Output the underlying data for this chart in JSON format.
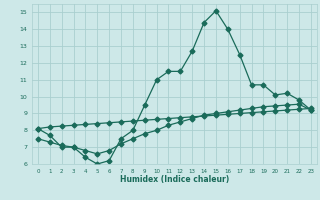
{
  "xlabel": "Humidex (Indice chaleur)",
  "bg_color": "#cde8e8",
  "grid_color": "#aacfcf",
  "line_color": "#1a6b5a",
  "xlim": [
    -0.5,
    23.5
  ],
  "ylim": [
    6,
    15.5
  ],
  "xticks": [
    0,
    1,
    2,
    3,
    4,
    5,
    6,
    7,
    8,
    9,
    10,
    11,
    12,
    13,
    14,
    15,
    16,
    17,
    18,
    19,
    20,
    21,
    22,
    23
  ],
  "yticks": [
    6,
    7,
    8,
    9,
    10,
    11,
    12,
    13,
    14,
    15
  ],
  "curve1_x": [
    0,
    1,
    2,
    3,
    4,
    5,
    6,
    7,
    8,
    9,
    10,
    11,
    12,
    13,
    14,
    15,
    16,
    17,
    18,
    19,
    20,
    21,
    22,
    23
  ],
  "curve1_y": [
    8.1,
    7.7,
    7.0,
    7.0,
    6.4,
    6.0,
    6.2,
    7.5,
    8.0,
    9.5,
    11.0,
    11.5,
    11.5,
    12.7,
    14.4,
    15.1,
    14.0,
    12.5,
    10.7,
    10.7,
    10.1,
    10.2,
    9.8,
    9.2
  ],
  "curve2_x": [
    0,
    1,
    2,
    3,
    4,
    5,
    6,
    7,
    8,
    9,
    10,
    11,
    12,
    13,
    14,
    15,
    16,
    17,
    18,
    19,
    20,
    21,
    22,
    23
  ],
  "curve2_y": [
    8.1,
    8.2,
    8.25,
    8.3,
    8.35,
    8.4,
    8.45,
    8.5,
    8.55,
    8.6,
    8.65,
    8.7,
    8.75,
    8.8,
    8.85,
    8.9,
    8.95,
    9.0,
    9.05,
    9.1,
    9.15,
    9.2,
    9.25,
    9.3
  ],
  "curve3_x": [
    0,
    1,
    2,
    3,
    4,
    5,
    6,
    7,
    8,
    9,
    10,
    11,
    12,
    13,
    14,
    15,
    16,
    17,
    18,
    19,
    20,
    21,
    22,
    23
  ],
  "curve3_y": [
    7.5,
    7.3,
    7.1,
    7.0,
    6.8,
    6.6,
    6.8,
    7.2,
    7.5,
    7.8,
    8.0,
    8.3,
    8.5,
    8.7,
    8.9,
    9.0,
    9.1,
    9.2,
    9.3,
    9.4,
    9.45,
    9.5,
    9.55,
    9.2
  ],
  "marker": "D",
  "markersize": 2.5,
  "linewidth": 0.9
}
